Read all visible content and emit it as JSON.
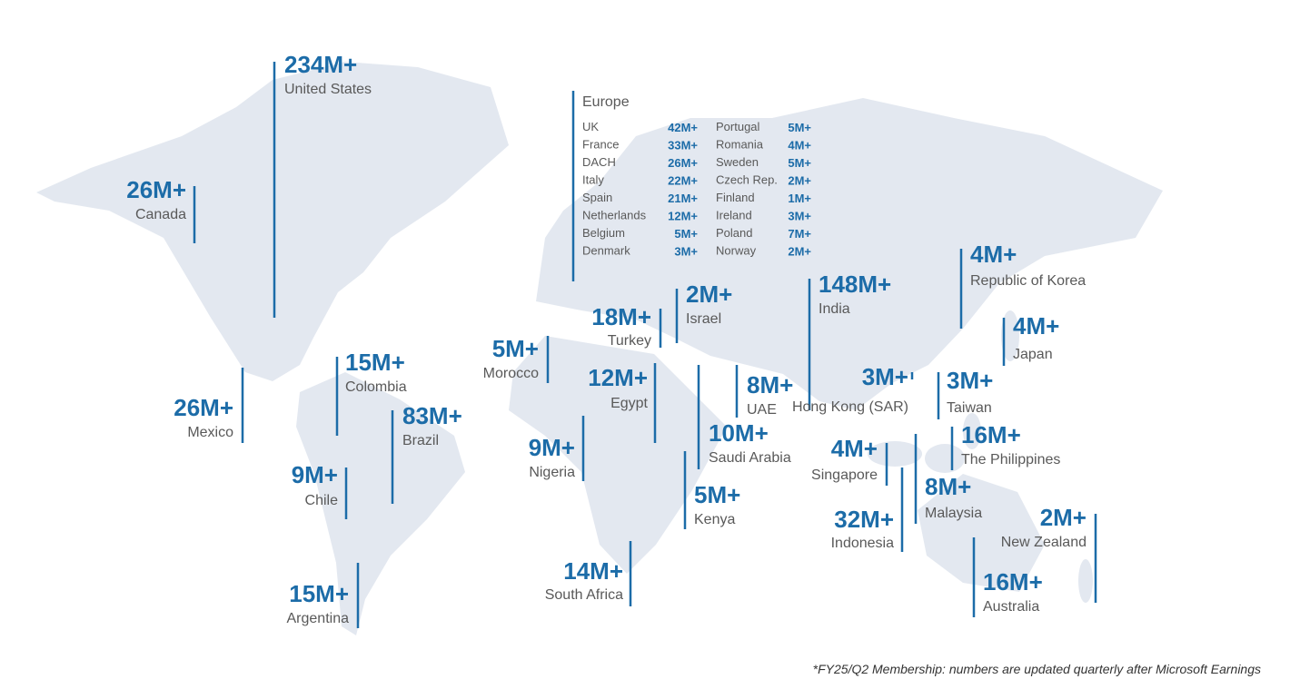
{
  "regions": [
    {
      "value": "234M+",
      "name": "United States"
    },
    {
      "value": "26M+",
      "name": "Canada"
    },
    {
      "value": "26M+",
      "name": "Mexico"
    },
    {
      "value": "15M+",
      "name": "Colombia"
    },
    {
      "value": "83M+",
      "name": "Brazil"
    },
    {
      "value": "9M+",
      "name": "Chile"
    },
    {
      "value": "15M+",
      "name": "Argentina"
    },
    {
      "value": "5M+",
      "name": "Morocco"
    },
    {
      "value": "18M+",
      "name": "Turkey"
    },
    {
      "value": "2M+",
      "name": "Israel"
    },
    {
      "value": "12M+",
      "name": "Egypt"
    },
    {
      "value": "9M+",
      "name": "Nigeria"
    },
    {
      "value": "8M+",
      "name": "UAE"
    },
    {
      "value": "10M+",
      "name": "Saudi Arabia"
    },
    {
      "value": "5M+",
      "name": "Kenya"
    },
    {
      "value": "14M+",
      "name": "South Africa"
    },
    {
      "value": "148M+",
      "name": "India"
    },
    {
      "value": "3M+",
      "name": "Hong Kong (SAR)"
    },
    {
      "value": "4M+",
      "name": "Republic of Korea"
    },
    {
      "value": "4M+",
      "name": "Japan"
    },
    {
      "value": "3M+",
      "name": "Taiwan"
    },
    {
      "value": "16M+",
      "name": "The Philippines"
    },
    {
      "value": "4M+",
      "name": "Singapore"
    },
    {
      "value": "8M+",
      "name": "Malaysia"
    },
    {
      "value": "32M+",
      "name": "Indonesia"
    },
    {
      "value": "2M+",
      "name": "New Zealand"
    },
    {
      "value": "16M+",
      "name": "Australia"
    }
  ],
  "europe": {
    "title": "Europe",
    "rows": [
      {
        "name": "UK",
        "value": "42M+"
      },
      {
        "name": "France",
        "value": "33M+"
      },
      {
        "name": "DACH",
        "value": "26M+"
      },
      {
        "name": "Italy",
        "value": "22M+"
      },
      {
        "name": "Spain",
        "value": "21M+"
      },
      {
        "name": "Netherlands",
        "value": "12M+"
      },
      {
        "name": "Belgium",
        "value": "5M+"
      },
      {
        "name": "Denmark",
        "value": "3M+"
      },
      {
        "name": "Portugal",
        "value": "5M+"
      },
      {
        "name": "Romania",
        "value": "4M+"
      },
      {
        "name": "Sweden",
        "value": "5M+"
      },
      {
        "name": "Czech Rep.",
        "value": "2M+"
      },
      {
        "name": "Finland",
        "value": "1M+"
      },
      {
        "name": "Ireland",
        "value": "3M+"
      },
      {
        "name": "Poland",
        "value": "7M+"
      },
      {
        "name": "Norway",
        "value": "2M+"
      }
    ]
  },
  "footnote": "*FY25/Q2 Membership: numbers are updated quarterly after Microsoft Earnings"
}
